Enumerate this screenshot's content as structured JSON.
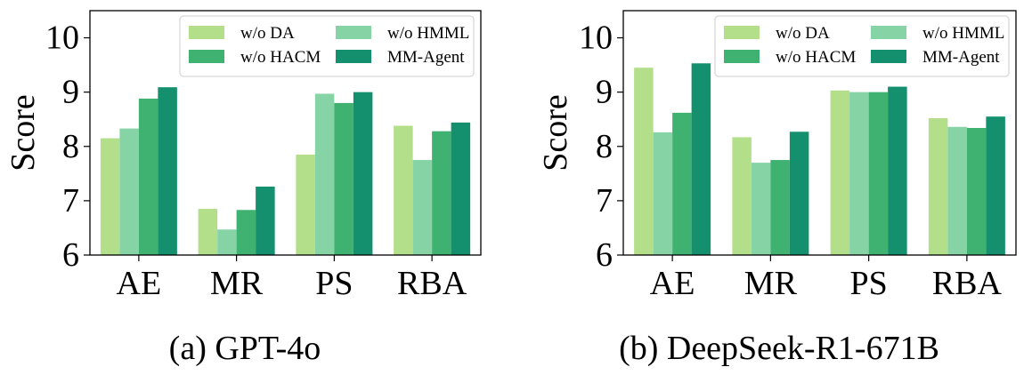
{
  "colors": {
    "w/o DA": "#b3df8a",
    "w/o HMML": "#86d4a6",
    "w/o HACM": "#3fb272",
    "MM-Agent": "#14906e"
  },
  "chart_data": [
    {
      "type": "bar",
      "caption": "(a) GPT-4o",
      "ylabel": "Score",
      "ylim": [
        6,
        10.5
      ],
      "yticks": [
        "6",
        "7",
        "8",
        "9",
        "10"
      ],
      "categories": [
        "AE",
        "MR",
        "PS",
        "RBA"
      ],
      "legend": {
        "placement": "top-right",
        "entries": [
          "w/o DA",
          "w/o HMML",
          "w/o HACM",
          "MM-Agent"
        ]
      },
      "series": [
        {
          "name": "w/o DA",
          "values": [
            8.15,
            6.85,
            7.85,
            8.38
          ]
        },
        {
          "name": "w/o HMML",
          "values": [
            8.33,
            6.47,
            8.97,
            7.75
          ]
        },
        {
          "name": "w/o HACM",
          "values": [
            8.88,
            6.83,
            8.8,
            8.28
          ]
        },
        {
          "name": "MM-Agent",
          "values": [
            9.09,
            7.26,
            9.0,
            8.44
          ]
        }
      ]
    },
    {
      "type": "bar",
      "caption": "(b) DeepSeek-R1-671B",
      "ylabel": "Score",
      "ylim": [
        6,
        10.5
      ],
      "yticks": [
        "6",
        "7",
        "8",
        "9",
        "10"
      ],
      "categories": [
        "AE",
        "MR",
        "PS",
        "RBA"
      ],
      "legend": {
        "placement": "top-right",
        "entries": [
          "w/o DA",
          "w/o HMML",
          "w/o HACM",
          "MM-Agent"
        ]
      },
      "series": [
        {
          "name": "w/o DA",
          "values": [
            9.45,
            8.17,
            9.03,
            8.52
          ]
        },
        {
          "name": "w/o HMML",
          "values": [
            8.26,
            7.7,
            9.0,
            8.36
          ]
        },
        {
          "name": "w/o HACM",
          "values": [
            8.62,
            7.75,
            9.0,
            8.34
          ]
        },
        {
          "name": "MM-Agent",
          "values": [
            9.53,
            8.27,
            9.1,
            8.55
          ]
        }
      ]
    }
  ]
}
